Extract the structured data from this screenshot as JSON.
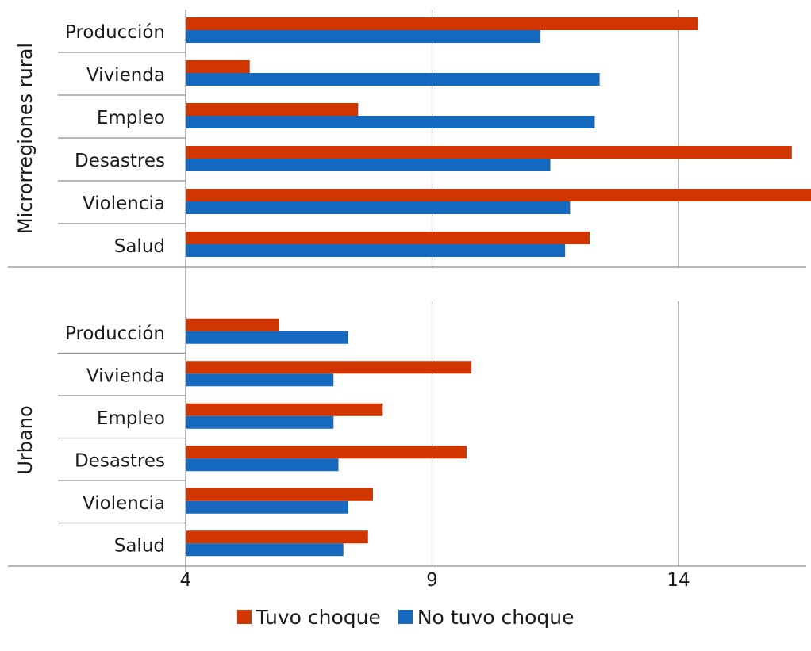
{
  "chart_data": {
    "type": "bar",
    "orientation": "horizontal",
    "x_ticks": [
      4,
      9,
      14
    ],
    "xlim": [
      4,
      16.7
    ],
    "grid": true,
    "legend_position": "bottom",
    "groups": [
      {
        "name": "Microrregiones rural",
        "categories": [
          "Producción",
          "Vivienda",
          "Empleo",
          "Desastres",
          "Violencia",
          "Salud"
        ],
        "series": [
          {
            "name": "Tuvo choque",
            "color": "#d13500",
            "values": [
              14.4,
              5.3,
              7.5,
              16.3,
              16.7,
              12.2
            ]
          },
          {
            "name": "No tuvo choque",
            "color": "#1569be",
            "values": [
              11.2,
              12.4,
              12.3,
              11.4,
              11.8,
              11.7
            ]
          }
        ]
      },
      {
        "name": "Urbano",
        "categories": [
          "Producción",
          "Vivienda",
          "Empleo",
          "Desastres",
          "Violencia",
          "Salud"
        ],
        "series": [
          {
            "name": "Tuvo choque",
            "color": "#d13500",
            "values": [
              5.9,
              9.8,
              8.0,
              9.7,
              7.8,
              7.7
            ]
          },
          {
            "name": "No tuvo choque",
            "color": "#1569be",
            "values": [
              7.3,
              7.0,
              7.0,
              7.1,
              7.3,
              7.2
            ]
          }
        ]
      }
    ]
  },
  "legend": {
    "tuvo_label": "Tuvo choque",
    "no_tuvo_label": "No tuvo choque"
  }
}
